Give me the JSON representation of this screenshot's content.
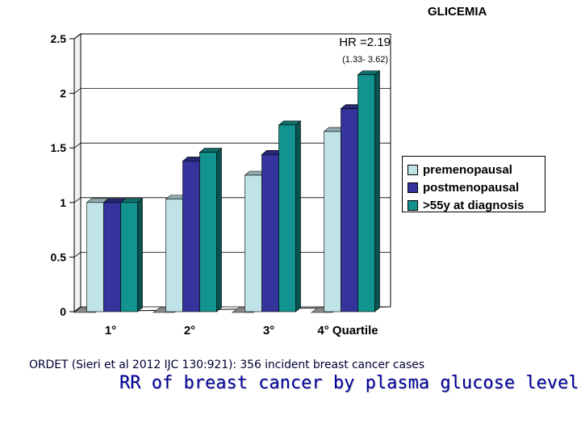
{
  "slide_title": "GLICEMIA",
  "source_text": "ORDET (Sieri et al 2012 IJC 130:921): 356 incident breast cancer cases",
  "headline": "RR of breast cancer by plasma glucose levels",
  "colors": {
    "premenopausal": "#bfe3e6",
    "postmenopausal": "#34349c",
    "over55": "#12938f",
    "wall": "#ffffff",
    "floor": "#888888"
  },
  "chart_data": {
    "type": "bar",
    "title": "",
    "xlabel": "",
    "ylabel": "",
    "categories": [
      "1°",
      "2°",
      "3°",
      "4° Quartile"
    ],
    "ylim": [
      0,
      2.5
    ],
    "yticks": [
      "0",
      "0.5",
      "1",
      "1.5",
      "2",
      "2.5"
    ],
    "grid": true,
    "legend_position": "right",
    "series": [
      {
        "name": "premenopausal",
        "values": [
          1.0,
          1.03,
          1.25,
          1.65
        ]
      },
      {
        "name": "postmenopausal",
        "values": [
          1.0,
          1.38,
          1.44,
          1.86
        ]
      },
      {
        "name": ">55y at diagnosis",
        "values": [
          1.0,
          1.46,
          1.71,
          2.17
        ]
      }
    ],
    "annotation": {
      "label": "HR =2.19",
      "ci": "(1.33- 3.62)"
    }
  }
}
